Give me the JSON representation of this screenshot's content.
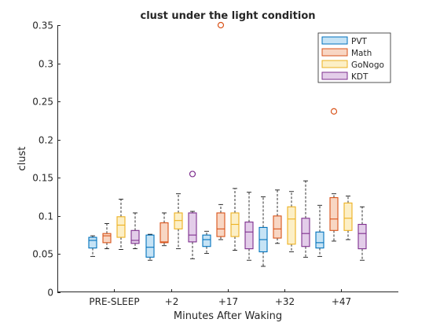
{
  "chart_data": {
    "type": "box",
    "title": "clust under the light condition",
    "xlabel": "Minutes After Waking",
    "ylabel": "clust",
    "ylim": [
      0,
      0.35
    ],
    "yticks": [
      0,
      0.05,
      0.1,
      0.15,
      0.2,
      0.25,
      0.3,
      0.35
    ],
    "ytick_labels": [
      "0",
      "0.05",
      "0.1",
      "0.15",
      "0.2",
      "0.25",
      "0.3",
      "0.35"
    ],
    "categories": [
      "PRE-SLEEP",
      "+2",
      "+17",
      "+32",
      "+47"
    ],
    "legend_position": "top-right",
    "series": [
      {
        "name": "PVT",
        "color": "#0072BD",
        "fill": "#C6E3F5",
        "boxes": [
          {
            "whisker_low": 0.047,
            "q1": 0.058,
            "median": 0.068,
            "q3": 0.072,
            "whisker_high": 0.074,
            "outliers": []
          },
          {
            "whisker_low": 0.042,
            "q1": 0.046,
            "median": 0.059,
            "q3": 0.075,
            "whisker_high": 0.076,
            "outliers": []
          },
          {
            "whisker_low": 0.051,
            "q1": 0.06,
            "median": 0.069,
            "q3": 0.075,
            "whisker_high": 0.08,
            "outliers": []
          },
          {
            "whisker_low": 0.034,
            "q1": 0.053,
            "median": 0.069,
            "q3": 0.085,
            "whisker_high": 0.125,
            "outliers": []
          },
          {
            "whisker_low": 0.047,
            "q1": 0.058,
            "median": 0.065,
            "q3": 0.079,
            "whisker_high": 0.114,
            "outliers": []
          }
        ]
      },
      {
        "name": "Math",
        "color": "#D95319",
        "fill": "#F8D6C3",
        "boxes": [
          {
            "whisker_low": 0.057,
            "q1": 0.065,
            "median": 0.074,
            "q3": 0.077,
            "whisker_high": 0.09,
            "outliers": []
          },
          {
            "whisker_low": 0.061,
            "q1": 0.065,
            "median": 0.066,
            "q3": 0.091,
            "whisker_high": 0.104,
            "outliers": []
          },
          {
            "whisker_low": 0.069,
            "q1": 0.073,
            "median": 0.083,
            "q3": 0.104,
            "whisker_high": 0.115,
            "outliers": [
              0.35
            ]
          },
          {
            "whisker_low": 0.064,
            "q1": 0.071,
            "median": 0.083,
            "q3": 0.1,
            "whisker_high": 0.134,
            "outliers": []
          },
          {
            "whisker_low": 0.067,
            "q1": 0.081,
            "median": 0.096,
            "q3": 0.124,
            "whisker_high": 0.129,
            "outliers": [
              0.237
            ]
          }
        ]
      },
      {
        "name": "GoNogo",
        "color": "#EDB120",
        "fill": "#FCEFC6",
        "boxes": [
          {
            "whisker_low": 0.056,
            "q1": 0.072,
            "median": 0.088,
            "q3": 0.099,
            "whisker_high": 0.122,
            "outliers": []
          },
          {
            "whisker_low": 0.057,
            "q1": 0.083,
            "median": 0.094,
            "q3": 0.104,
            "whisker_high": 0.129,
            "outliers": []
          },
          {
            "whisker_low": 0.055,
            "q1": 0.073,
            "median": 0.089,
            "q3": 0.104,
            "whisker_high": 0.136,
            "outliers": []
          },
          {
            "whisker_low": 0.053,
            "q1": 0.063,
            "median": 0.096,
            "q3": 0.112,
            "whisker_high": 0.132,
            "outliers": []
          },
          {
            "whisker_low": 0.069,
            "q1": 0.081,
            "median": 0.097,
            "q3": 0.117,
            "whisker_high": 0.126,
            "outliers": []
          }
        ]
      },
      {
        "name": "KDT",
        "color": "#7E2F8E",
        "fill": "#E3CDE9",
        "boxes": [
          {
            "whisker_low": 0.057,
            "q1": 0.064,
            "median": 0.068,
            "q3": 0.081,
            "whisker_high": 0.104,
            "outliers": []
          },
          {
            "whisker_low": 0.044,
            "q1": 0.066,
            "median": 0.075,
            "q3": 0.104,
            "whisker_high": 0.106,
            "outliers": [
              0.155
            ]
          },
          {
            "whisker_low": 0.042,
            "q1": 0.057,
            "median": 0.079,
            "q3": 0.092,
            "whisker_high": 0.131,
            "outliers": []
          },
          {
            "whisker_low": 0.046,
            "q1": 0.06,
            "median": 0.077,
            "q3": 0.097,
            "whisker_high": 0.146,
            "outliers": []
          },
          {
            "whisker_low": 0.042,
            "q1": 0.057,
            "median": 0.077,
            "q3": 0.089,
            "whisker_high": 0.112,
            "outliers": []
          }
        ]
      }
    ]
  }
}
